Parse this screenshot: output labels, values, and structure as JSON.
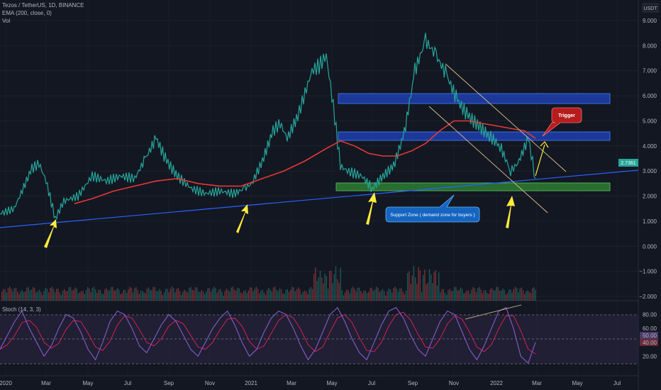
{
  "header": {
    "symbol_line": "Tezos / TetherUS, 1D, BINANCE",
    "ema_line": "EMA (200, close, 0)",
    "vol_line": "Vol",
    "currency": "USDT",
    "stoch_line": "Stoch (14, 3, 3)"
  },
  "annotations": {
    "trigger": "Trigger",
    "support_zone": "Support Zone ( demand zone for buyers )"
  },
  "colors": {
    "background": "#131722",
    "ema": "#e53935",
    "trendline": "#2962ff",
    "resistance_box": "#1e40af",
    "support_box": "#2e7d32",
    "arrow": "#ffeb3b",
    "trigger_bubble": "#b71c1c",
    "support_bubble": "#1565c0",
    "stoch_k": "#7e57c2",
    "stoch_d": "#e91e63",
    "price_badge": "#26a69a"
  },
  "chart_data": [
    {
      "type": "line",
      "panel": "price",
      "y_ticks": [
        "9.000",
        "8.000",
        "7.000",
        "6.000",
        "5.000",
        "4.000",
        "3.000",
        "2.000",
        "1.000",
        "0.000",
        "−1.000",
        "−2.000"
      ],
      "x_ticks": [
        "2020",
        "Mar",
        "May",
        "Jul",
        "Sep",
        "Nov",
        "2021",
        "Mar",
        "May",
        "Jul",
        "Sep",
        "Nov",
        "2022",
        "Mar",
        "May",
        "Jul"
      ],
      "ylim": [
        -2.2,
        9.5
      ],
      "current_price_label": "2.7361",
      "series": [
        {
          "name": "",
          "x": [
            0,
            20,
            45,
            55,
            65,
            78,
            90,
            110,
            130,
            150,
            170,
            190,
            205,
            220,
            235,
            250,
            270,
            290,
            310,
            330,
            345,
            355,
            370,
            385,
            395,
            405,
            420,
            440,
            450,
            460,
            470,
            480,
            490,
            510,
            525,
            540,
            555,
            570,
            585,
            600,
            615,
            630,
            645,
            660,
            675,
            690,
            705,
            720,
            730,
            745,
            755
          ],
          "values": [
            1.3,
            1.5,
            3.1,
            3.3,
            2.6,
            1.1,
            1.8,
            2.0,
            2.8,
            2.6,
            2.8,
            2.7,
            3.5,
            4.3,
            3.4,
            2.8,
            2.3,
            2.1,
            2.2,
            2.1,
            2.3,
            2.5,
            3.4,
            4.6,
            4.9,
            4.3,
            5.2,
            7.0,
            7.2,
            7.6,
            5.6,
            3.2,
            3.0,
            2.8,
            2.3,
            2.8,
            3.2,
            4.5,
            7.0,
            8.2,
            7.6,
            6.8,
            5.8,
            5.2,
            4.8,
            4.4,
            4.0,
            3.0,
            3.3,
            4.3,
            2.7
          ]
        },
        {
          "name": "EMA (200, close, 0)",
          "x": [
            105,
            130,
            160,
            190,
            220,
            250,
            280,
            310,
            340,
            370,
            400,
            430,
            460,
            480,
            500,
            520,
            540,
            560,
            580,
            600,
            620,
            640,
            660,
            680,
            700,
            720,
            740,
            755
          ],
          "values": [
            1.7,
            1.9,
            2.2,
            2.4,
            2.6,
            2.7,
            2.5,
            2.4,
            2.4,
            2.7,
            3.0,
            3.4,
            3.9,
            4.2,
            4.0,
            3.7,
            3.6,
            3.6,
            3.8,
            4.1,
            4.6,
            5.0,
            5.0,
            4.9,
            4.8,
            4.7,
            4.6,
            4.3
          ]
        }
      ]
    },
    {
      "type": "bar",
      "panel": "volume",
      "title": "Vol"
    },
    {
      "type": "line",
      "panel": "stochastic",
      "title": "Stoch (14, 3, 3)",
      "y_ticks": [
        "80.00",
        "60.00",
        "50.00",
        "40.00",
        "20.00"
      ],
      "ylim": [
        0,
        100
      ],
      "bands": [
        20,
        50,
        80
      ],
      "series": [
        {
          "name": "",
          "values": [
            30,
            50,
            70,
            85,
            60,
            40,
            20,
            35,
            60,
            80,
            75,
            55,
            30,
            15,
            40,
            70,
            85,
            80,
            60,
            35,
            25,
            45,
            65,
            80,
            70,
            50,
            30,
            20,
            40,
            60,
            75,
            85,
            65,
            40,
            20,
            30,
            55,
            75,
            85,
            80,
            60,
            35,
            15,
            30,
            55,
            80,
            90,
            70,
            45,
            25,
            15,
            40,
            65,
            85,
            90,
            75,
            50,
            30,
            20,
            45,
            70,
            85,
            80,
            55,
            30,
            15,
            35,
            60,
            85,
            90,
            60,
            20,
            10,
            40
          ]
        }
      ]
    }
  ]
}
